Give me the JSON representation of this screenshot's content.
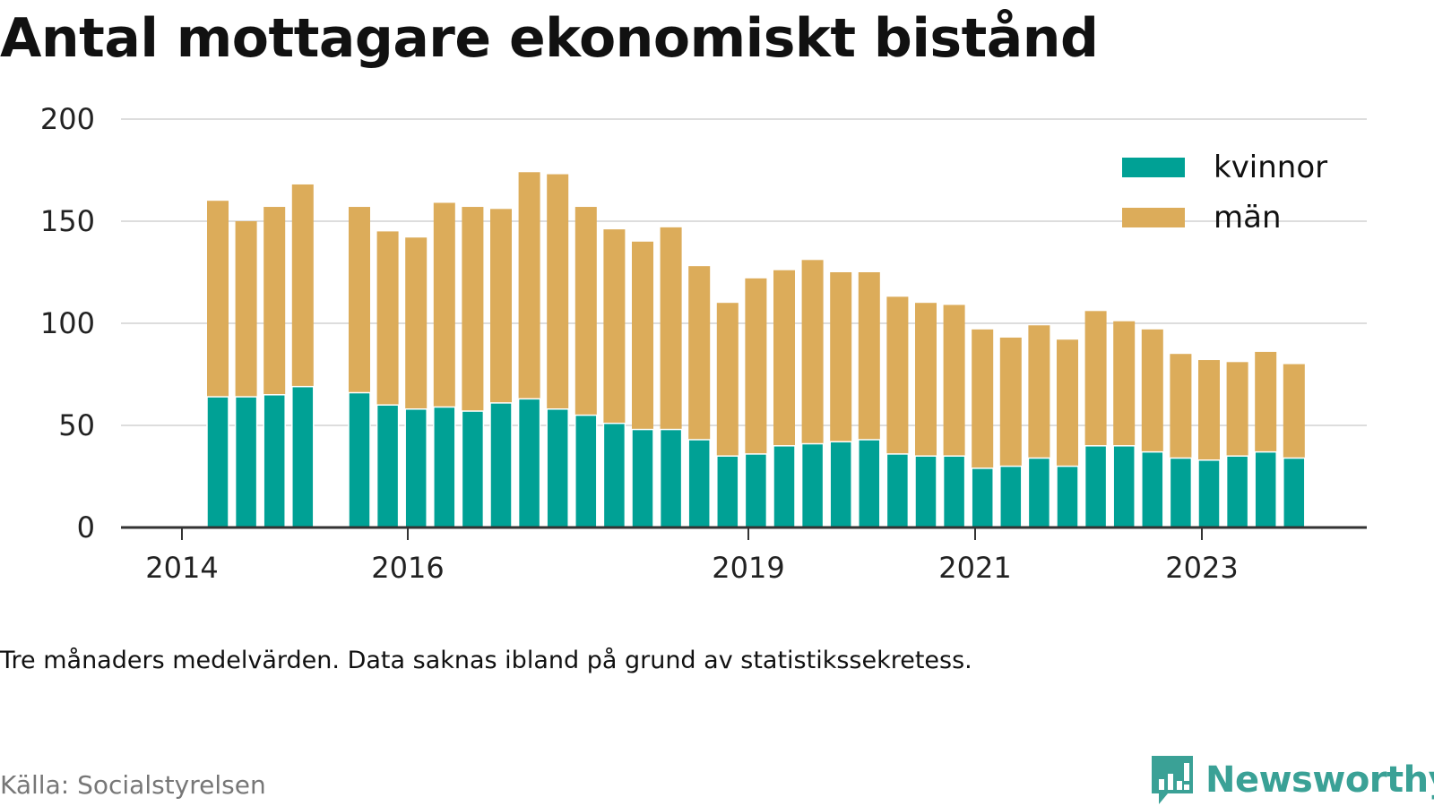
{
  "title": "Antal mottagare ekonomiskt bistånd",
  "note": "Tre månaders medelvärden. Data saknas ibland på grund av statistikssekretess.",
  "source": "Källa: Socialstyrelsen",
  "brand": {
    "name": "Newsworthy",
    "icon": "newsworthy-logo-icon",
    "color": "#3aa196"
  },
  "colors": {
    "kvinnor": "#00a195",
    "man": "#dcac5a",
    "grid": "#dddddd",
    "axis": "#333333"
  },
  "chart_data": {
    "type": "bar",
    "stacked": true,
    "ylim": [
      0,
      200
    ],
    "yticks": [
      "0",
      "50",
      "100",
      "150",
      "200"
    ],
    "xticks": [
      "2014",
      "2016",
      "2019",
      "2021",
      "2023"
    ],
    "legend_position": "top-right",
    "grid": true,
    "series": [
      {
        "name": "kvinnor",
        "values": [
          64,
          64,
          65,
          69,
          null,
          66,
          60,
          58,
          59,
          57,
          61,
          63,
          58,
          55,
          51,
          48,
          48,
          43,
          35,
          36,
          40,
          41,
          42,
          43,
          36,
          35,
          35,
          29,
          30,
          34,
          30,
          40,
          40,
          37,
          34,
          33,
          35,
          37,
          34
        ]
      },
      {
        "name": "män",
        "values": [
          96,
          86,
          92,
          99,
          null,
          91,
          85,
          84,
          100,
          100,
          95,
          111,
          115,
          102,
          95,
          92,
          99,
          85,
          75,
          86,
          86,
          90,
          83,
          82,
          77,
          75,
          74,
          68,
          63,
          65,
          62,
          66,
          61,
          60,
          51,
          49,
          46,
          49,
          46
        ]
      }
    ]
  }
}
